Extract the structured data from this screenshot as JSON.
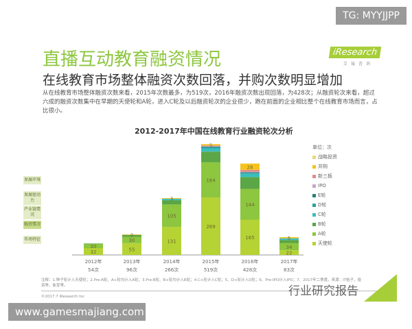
{
  "watermark_top": "TG: MYYJJPP",
  "watermark_bottom": "www.gamesmajiang.com",
  "watermark_text": "行业研究报告",
  "title": "直播互动教育融资情况",
  "subtitle": "在线教育市场整体融资次数回落，并购次数明显增加",
  "description": "从在线教育市场整体融资次数来看，2015年次数最多，为519次，2016年融资次数出现回落，为428次；从融资轮次来看，超过六成的融资次数集中在早期的天使轮和A轮，进入C轮及以后融资轮次的企业很少，跑在前面的企业相比整个在线教育市场而言，占比很小。",
  "logo": "iResearch",
  "logo_sub": "艾瑞咨询",
  "side_nav": [
    "发展环境",
    "发展驱动力",
    "产业链情况",
    "融资情况",
    "市场特征"
  ],
  "note": "注释：1.种子轮计入天使轮；2.Pre-A轮、A+轮均计入A轮；3.Pre-B轮、B+轮均计入B轮；4.C+轮计入C轮；5、D+轮计入D轮；6、Pre-IPO计入IPO；7、2017年二季度。来源：IT桔子，投资界，新芽等。",
  "copyright": "©2017.7 iResearch Inc",
  "chart_data": {
    "type": "bar",
    "stacked": true,
    "title": "2012-2017年中国在线教育行业融资轮次分析",
    "unit": "单位：次",
    "categories": [
      "2012年",
      "2013年",
      "2014年",
      "2015年",
      "2016年",
      "2017年"
    ],
    "totals": [
      "54次",
      "96次",
      "266次",
      "519次",
      "428次",
      "83次"
    ],
    "legend_position": "right",
    "series": [
      {
        "name": "天使轮",
        "color": "#b5d334",
        "values": [
          32,
          55,
          131,
          269,
          165,
          22
        ]
      },
      {
        "name": "A轮",
        "color": "#8dc63f",
        "values": [
          20,
          30,
          105,
          164,
          144,
          34
        ]
      },
      {
        "name": "B轮",
        "color": "#5ba646",
        "values": [
          2,
          9,
          20,
          50,
          55,
          14
        ]
      },
      {
        "name": "C轮",
        "color": "#3bbfbf",
        "values": [
          0,
          0,
          6,
          15,
          15,
          6
        ]
      },
      {
        "name": "D轮",
        "color": "#2ea3a3",
        "values": [
          0,
          0,
          1,
          6,
          5,
          2
        ]
      },
      {
        "name": "E轮",
        "color": "#2b7f75",
        "values": [
          0,
          0,
          0,
          3,
          3,
          0
        ]
      },
      {
        "name": "IPO",
        "color": "#c9a5c9",
        "values": [
          0,
          0,
          0,
          2,
          2,
          0
        ]
      },
      {
        "name": "新三板",
        "color": "#e58b8b",
        "values": [
          0,
          0,
          0,
          3,
          9,
          0
        ]
      },
      {
        "name": "并购",
        "color": "#f7c21a",
        "values": [
          0,
          2,
          3,
          5,
          28,
          5
        ]
      },
      {
        "name": "战略投资",
        "color": "#e8d87a",
        "values": [
          0,
          0,
          0,
          2,
          2,
          0
        ]
      }
    ],
    "labeled": {
      "天使轮": [
        32,
        55,
        131,
        269,
        165,
        22
      ],
      "A轮": [
        20,
        30,
        105,
        164,
        144,
        34
      ],
      "并购": [
        null,
        2,
        3,
        5,
        28,
        5
      ]
    }
  }
}
